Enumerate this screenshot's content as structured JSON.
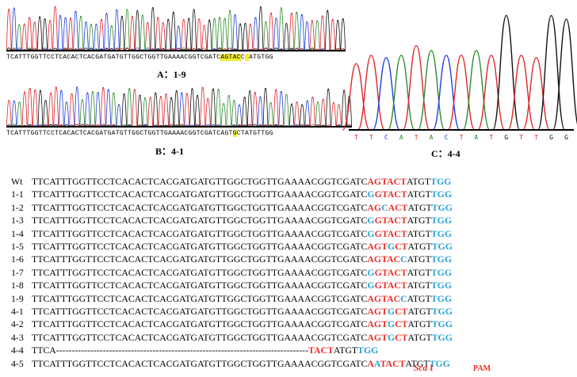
{
  "chromatograms": {
    "A": {
      "label": "A：1-9",
      "calls_pre": "TCATTTGGTTCCTCACACTCACGATGATGTTGGCTGGTTGAAAACGGTCGATC",
      "calls_hl1": "AGTAC",
      "calls_mid": "C",
      "calls_hl2": "",
      "calls_post": "ATGTGG"
    },
    "B": {
      "label": "B：4-1",
      "calls_pre": "TCATTTGGTTCCTCACACTCACGATGATGTTGGCTGGTTGAAAACGGTCGATCAGT",
      "calls_hl": "G",
      "calls_post": "CTATGTTGG"
    },
    "C": {
      "label": "C：4-4",
      "calls": [
        "T",
        "T",
        "C",
        "A",
        "T",
        "A",
        "C",
        "T",
        "A",
        "T",
        "G",
        "T",
        "T",
        "G",
        "G"
      ]
    },
    "trace_colors": {
      "A": "#2e8b2e",
      "C": "#1f3fe0",
      "G": "#111111",
      "T": "#e0252b"
    }
  },
  "alignment": [
    {
      "label": "Wt",
      "base": "TTCATTTGGTTCCTCACACTCACGATGATGTTGGCTGGTTGAAAACGGTCGATC",
      "site": [
        [
          "AGTACT",
          "red"
        ]
      ],
      "tail": "ATGT",
      "pam": "TGG"
    },
    {
      "label": "1-1",
      "base": "TTCATTTGGTTCCTCACACTCACGATGATGTTGGCTGGTTGAAAACGGTCGATC",
      "site": [
        [
          "G",
          "blue"
        ],
        [
          "GTACT",
          "red"
        ]
      ],
      "tail": "ATGT",
      "pam": "TGG"
    },
    {
      "label": "1-2",
      "base": "TTCATTTGGTTCCTCACACTCACGATGATGTTGGCTGGTTGAAAACGGTCGATC",
      "site": [
        [
          "AG",
          "red"
        ],
        [
          "C",
          "blue"
        ],
        [
          "ACT",
          "red"
        ]
      ],
      "tail": "ATGT",
      "pam": "TGG"
    },
    {
      "label": "1-3",
      "base": "TTCATTTGGTTCCTCACACTCACGATGATGTTGGCTGGTTGAAAACGGTCGATC",
      "site": [
        [
          "G",
          "blue"
        ],
        [
          "GTACT",
          "red"
        ]
      ],
      "tail": "ATGT",
      "pam": "TGG"
    },
    {
      "label": "1-4",
      "base": "TTCATTTGGTTCCTCACACTCACGATGATGTTGGCTGGTTGAAAACGGTCGATC",
      "site": [
        [
          "G",
          "blue"
        ],
        [
          "GTACT",
          "red"
        ]
      ],
      "tail": "ATGT",
      "pam": "TGG"
    },
    {
      "label": "1-5",
      "base": "TTCATTTGGTTCCTCACACTCACGATGATGTTGGCTGGTTGAAAACGGTCGATC",
      "site": [
        [
          "AGT",
          "red"
        ],
        [
          "G",
          "blue"
        ],
        [
          "CT",
          "red"
        ]
      ],
      "tail": "ATGT",
      "pam": "TGG"
    },
    {
      "label": "1-6",
      "base": "TTCATTTGGTTCCTCACACTCACGATGATGTTGGCTGGTTGAAAACGGTCGATC",
      "site": [
        [
          "AGTAC",
          "red"
        ],
        [
          "C",
          "blue"
        ]
      ],
      "tail": "ATGT",
      "pam": "TGG"
    },
    {
      "label": "1-7",
      "base": "TTCATTTGGTTCCTCACACTCACGATGATGTTGGCTGGTTGAAAACGGTCGATC",
      "site": [
        [
          "G",
          "blue"
        ],
        [
          "GTACT",
          "red"
        ]
      ],
      "tail": "ATGT",
      "pam": "TGG"
    },
    {
      "label": "1-8",
      "base": "TTCATTTGGTTCCTCACACTCACGATGATGTTGGCTGGTTGAAAACGGTCGATC",
      "site": [
        [
          "G",
          "blue"
        ],
        [
          "GTACT",
          "red"
        ]
      ],
      "tail": "ATGT",
      "pam": "TGG"
    },
    {
      "label": "1-9",
      "base": "TTCATTTGGTTCCTCACACTCACGATGATGTTGGCTGGTTGAAAACGGTCGATC",
      "site": [
        [
          "AGTAC",
          "red"
        ],
        [
          "C",
          "blue"
        ]
      ],
      "tail": "ATGT",
      "pam": "TGG"
    },
    {
      "label": "4-1",
      "base": "TTCATTTGGTTCCTCACACTCACGATGATGTTGGCTGGTTGAAAACGGTCGATC",
      "site": [
        [
          "AGT",
          "red"
        ],
        [
          "G",
          "blue"
        ],
        [
          "CT",
          "red"
        ]
      ],
      "tail": "ATGT",
      "pam": "TGG"
    },
    {
      "label": "4-2",
      "base": "TTCATTTGGTTCCTCACACTCACGATGATGTTGGCTGGTTGAAAACGGTCGATC",
      "site": [
        [
          "AGT",
          "red"
        ],
        [
          "G",
          "blue"
        ],
        [
          "CT",
          "red"
        ]
      ],
      "tail": "ATGT",
      "pam": "TGG"
    },
    {
      "label": "4-3",
      "base": "TTCATTTGGTTCCTCACACTCACGATGATGTTGGCTGGTTGAAAACGGTCGATC",
      "site": [
        [
          "AGT",
          "red"
        ],
        [
          "G",
          "blue"
        ],
        [
          "CT",
          "red"
        ]
      ],
      "tail": "ATGT",
      "pam": "TGG"
    },
    {
      "label": "4-4",
      "base": "TTCA---------------------------------------------------------------------------------",
      "site": [
        [
          "TACT",
          "red"
        ]
      ],
      "tail": "ATGT",
      "pam": "TGG"
    },
    {
      "label": "4-5",
      "base": "TTCATTTGGTTCCTCACACTCACGATGATGTTGGCTGGTTGAAAACGGTCGATC",
      "site": [
        [
          "A",
          "red"
        ],
        [
          "A",
          "blue"
        ],
        [
          "TACT",
          "red"
        ]
      ],
      "tail": "ATGT",
      "pam": "TGG"
    }
  ],
  "footer": {
    "enzyme": "Sca",
    "enzyme_suffix": " I",
    "pam": "PAM"
  }
}
